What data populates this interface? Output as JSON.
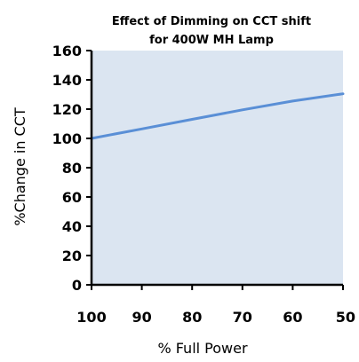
{
  "chart_data": {
    "type": "line",
    "title": "Effect of Dimming on CCT shift",
    "subtitle": "for 400W MH Lamp",
    "xlabel": "% Full Power",
    "ylabel": "%Change in CCT",
    "x_ticks": [
      "100",
      "90",
      "80",
      "70",
      "60",
      "50"
    ],
    "y_ticks": [
      "0",
      "20",
      "40",
      "60",
      "80",
      "100",
      "120",
      "140",
      "160"
    ],
    "xlim": [
      100,
      50
    ],
    "ylim": [
      0,
      160
    ],
    "x_reversed": true,
    "grid": false,
    "legend": "none",
    "series": [
      {
        "x": [
          100,
          90,
          80,
          70,
          60,
          50
        ],
        "y": [
          100,
          106.5,
          113,
          119.5,
          125.5,
          130.5
        ],
        "color": "#5a8fd6"
      }
    ],
    "plot_background": "#dbe5f1"
  }
}
